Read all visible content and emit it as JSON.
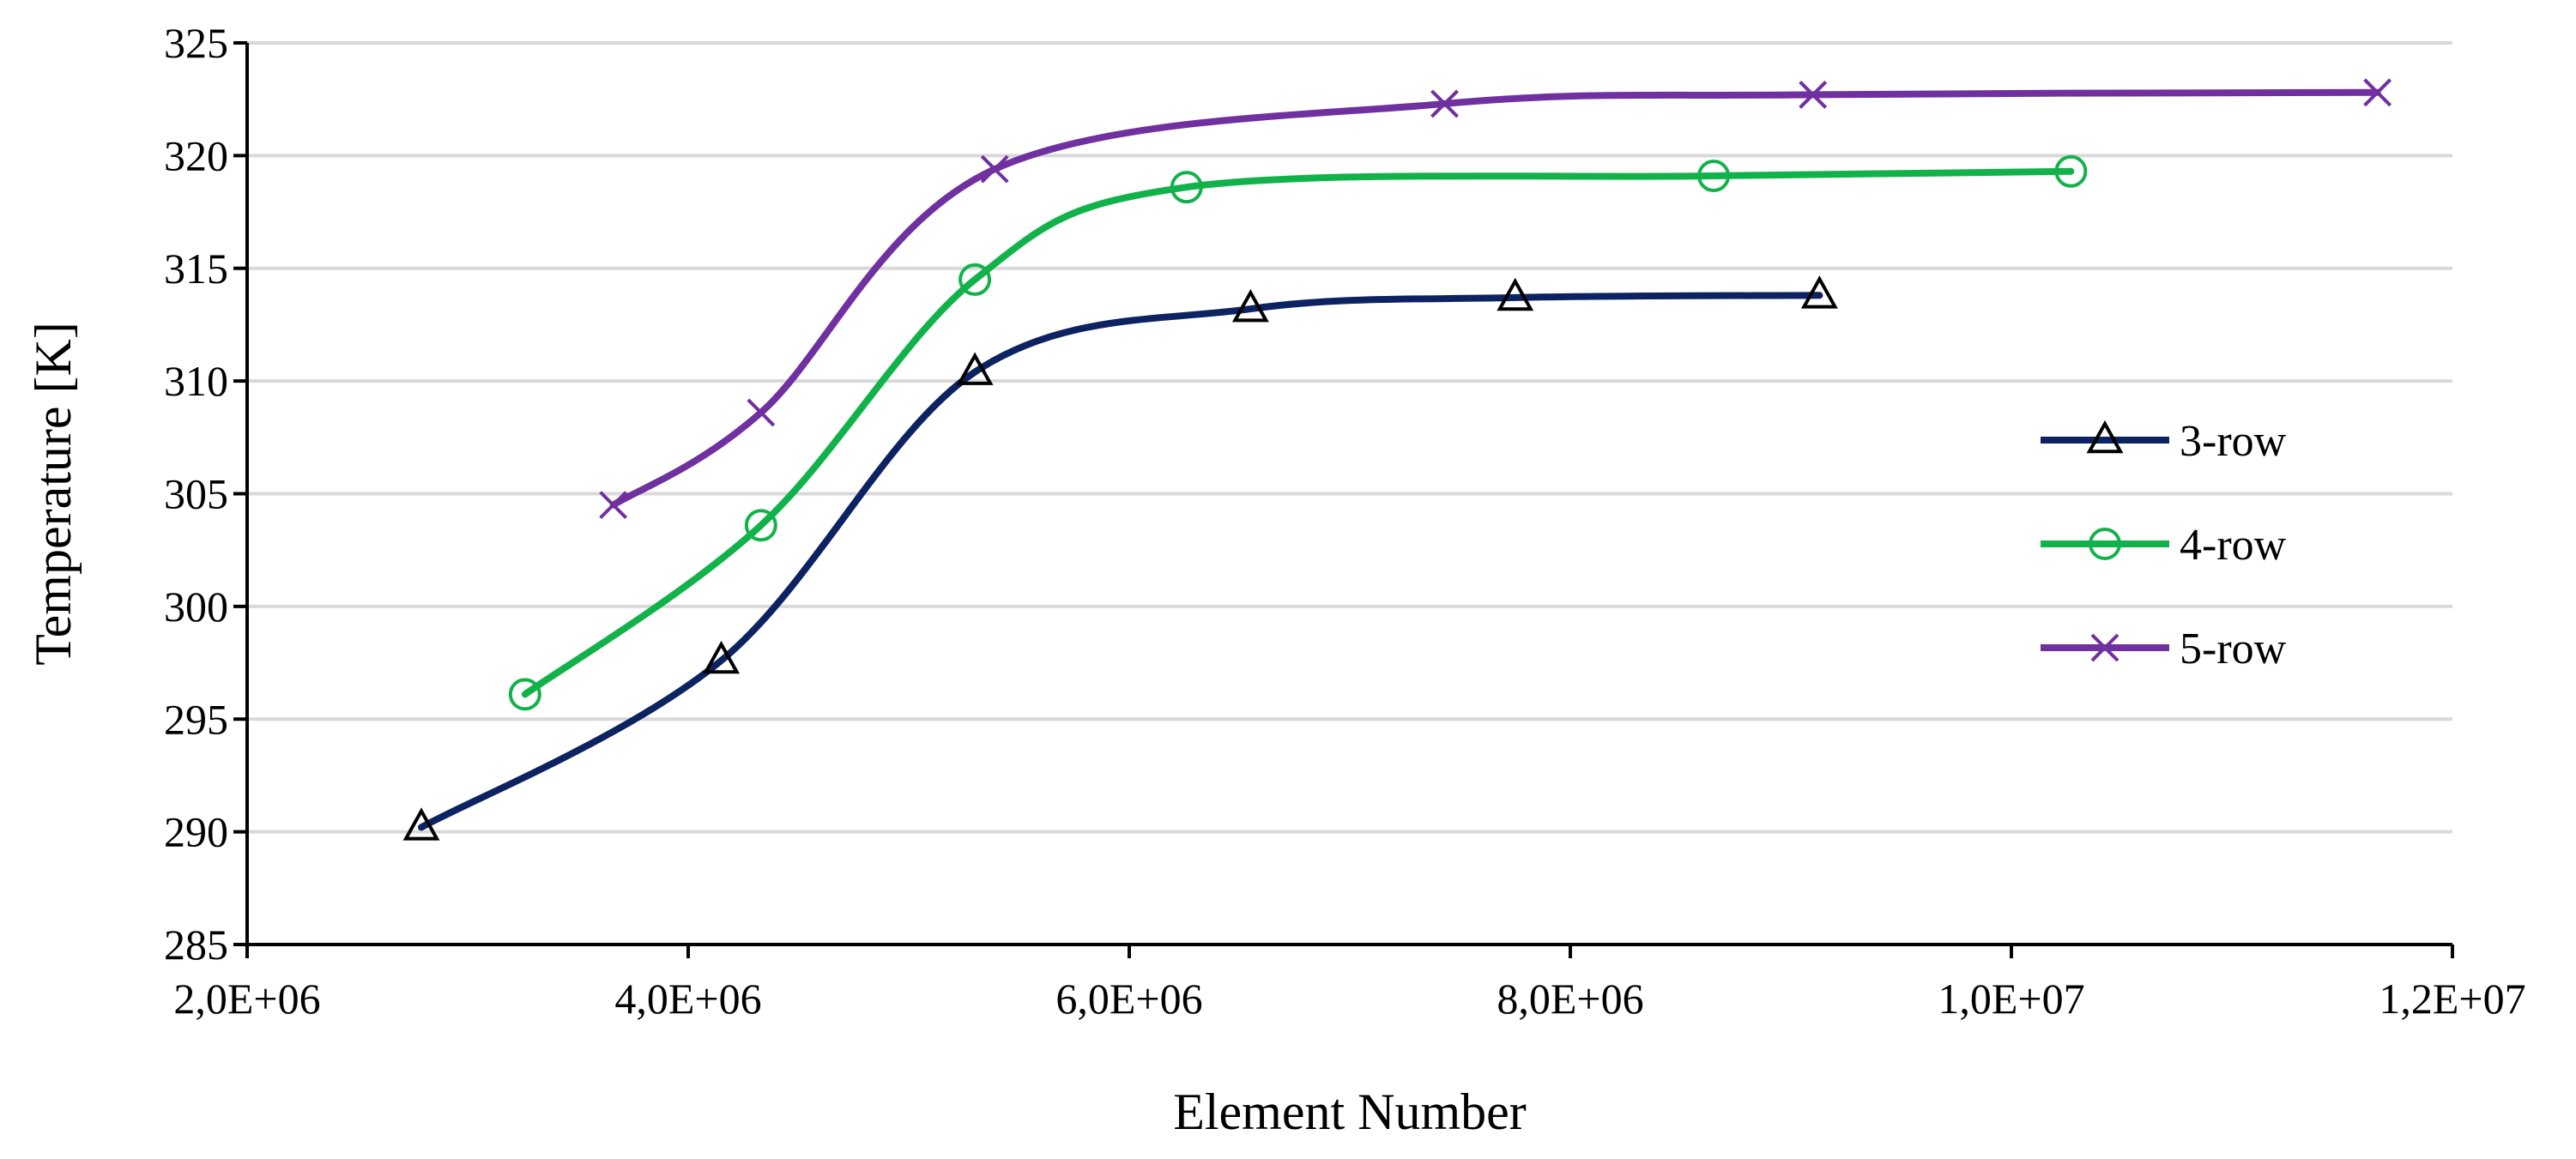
{
  "chart_data": {
    "type": "line",
    "title": "",
    "xlabel": "Element Number",
    "ylabel": "Temperature [K]",
    "xlim": [
      2000000,
      12000000
    ],
    "ylim": [
      285,
      325
    ],
    "xticks": [
      2000000,
      4000000,
      6000000,
      8000000,
      10000000,
      12000000
    ],
    "xtick_labels": [
      "2,0E+06",
      "4,0E+06",
      "6,0E+06",
      "8,0E+06",
      "1,0E+07",
      "1,2E+07"
    ],
    "yticks": [
      285,
      290,
      295,
      300,
      305,
      310,
      315,
      320,
      325
    ],
    "ytick_labels": [
      "285",
      "290",
      "295",
      "300",
      "305",
      "310",
      "315",
      "320",
      "325"
    ],
    "grid": true,
    "legend_position": "right",
    "series": [
      {
        "name": "3-row",
        "color": "#0c2261",
        "marker": "triangle",
        "x": [
          2790000,
          4150000,
          5300000,
          6550000,
          7750000,
          9130000
        ],
        "y": [
          290.2,
          297.6,
          310.4,
          313.2,
          313.7,
          313.8
        ]
      },
      {
        "name": "4-row",
        "color": "#12b24a",
        "marker": "circle",
        "x": [
          3260000,
          4330000,
          5300000,
          6260000,
          8650000,
          10270000
        ],
        "y": [
          296.1,
          303.6,
          314.5,
          318.6,
          319.1,
          319.3
        ]
      },
      {
        "name": "5-row",
        "color": "#7030a0",
        "marker": "x",
        "x": [
          3660000,
          4330000,
          5390000,
          7430000,
          9100000,
          11660000
        ],
        "y": [
          304.5,
          308.6,
          319.4,
          322.3,
          322.7,
          322.8
        ]
      }
    ]
  }
}
